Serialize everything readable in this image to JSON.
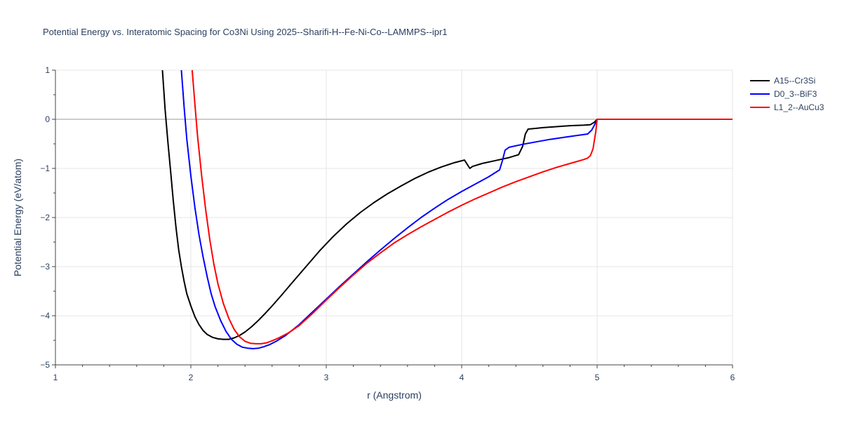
{
  "chart_data": {
    "type": "line",
    "title": "Potential Energy vs. Interatomic Spacing for Co3Ni Using 2025--Sharifi-H--Fe-Ni-Co--LAMMPS--ipr1",
    "xlabel": "r (Angstrom)",
    "ylabel": "Potential Energy (eV/atom)",
    "xlim": [
      1,
      6
    ],
    "ylim": [
      -5,
      1
    ],
    "xticks": [
      "1",
      "2",
      "3",
      "4",
      "5",
      "6"
    ],
    "yticks": [
      "1",
      "0",
      "−1",
      "−2",
      "−3",
      "−4",
      "−5"
    ],
    "grid": true,
    "legend_position": "top-right",
    "series": [
      {
        "name": "A15--Cr3Si",
        "color": "#000000",
        "x": [
          1.79,
          1.81,
          1.83,
          1.85,
          1.87,
          1.89,
          1.91,
          1.93,
          1.95,
          1.97,
          2.0,
          2.03,
          2.06,
          2.09,
          2.12,
          2.16,
          2.2,
          2.24,
          2.28,
          2.32,
          2.36,
          2.4,
          2.45,
          2.5,
          2.55,
          2.6,
          2.67,
          2.75,
          2.85,
          2.95,
          3.05,
          3.15,
          3.25,
          3.35,
          3.45,
          3.55,
          3.65,
          3.75,
          3.85,
          3.95,
          4.02,
          4.06,
          4.08,
          4.15,
          4.25,
          4.35,
          4.42,
          4.45,
          4.47,
          4.49,
          4.6,
          4.7,
          4.8,
          4.9,
          4.95,
          4.98,
          5.0,
          5.1,
          5.5,
          6.0
        ],
        "y": [
          1.0,
          0.2,
          -0.45,
          -1.05,
          -1.65,
          -2.2,
          -2.65,
          -3.0,
          -3.3,
          -3.55,
          -3.8,
          -4.02,
          -4.18,
          -4.3,
          -4.38,
          -4.44,
          -4.47,
          -4.48,
          -4.48,
          -4.45,
          -4.4,
          -4.33,
          -4.22,
          -4.09,
          -3.95,
          -3.8,
          -3.58,
          -3.32,
          -3.0,
          -2.68,
          -2.39,
          -2.13,
          -1.9,
          -1.7,
          -1.52,
          -1.36,
          -1.21,
          -1.08,
          -0.97,
          -0.88,
          -0.83,
          -1.0,
          -0.96,
          -0.9,
          -0.84,
          -0.78,
          -0.72,
          -0.55,
          -0.3,
          -0.2,
          -0.17,
          -0.15,
          -0.13,
          -0.12,
          -0.11,
          -0.06,
          0.0,
          0.0,
          0.0,
          0.0
        ]
      },
      {
        "name": "D0_3--BiF3",
        "color": "#0000ff",
        "x": [
          1.93,
          1.95,
          1.97,
          2.0,
          2.03,
          2.06,
          2.09,
          2.12,
          2.15,
          2.18,
          2.22,
          2.26,
          2.3,
          2.34,
          2.38,
          2.42,
          2.46,
          2.5,
          2.54,
          2.58,
          2.63,
          2.7,
          2.8,
          2.9,
          3.0,
          3.1,
          3.2,
          3.3,
          3.4,
          3.5,
          3.6,
          3.7,
          3.8,
          3.9,
          4.0,
          4.1,
          4.2,
          4.28,
          4.3,
          4.32,
          4.35,
          4.45,
          4.55,
          4.65,
          4.75,
          4.85,
          4.93,
          4.96,
          4.98,
          5.0,
          5.2,
          6.0
        ],
        "y": [
          1.0,
          0.25,
          -0.4,
          -1.15,
          -1.8,
          -2.35,
          -2.8,
          -3.2,
          -3.55,
          -3.82,
          -4.1,
          -4.32,
          -4.48,
          -4.58,
          -4.64,
          -4.66,
          -4.67,
          -4.66,
          -4.63,
          -4.59,
          -4.52,
          -4.4,
          -4.18,
          -3.92,
          -3.66,
          -3.4,
          -3.15,
          -2.9,
          -2.66,
          -2.43,
          -2.21,
          -2.0,
          -1.81,
          -1.63,
          -1.47,
          -1.32,
          -1.17,
          -1.03,
          -0.85,
          -0.63,
          -0.57,
          -0.51,
          -0.46,
          -0.41,
          -0.37,
          -0.33,
          -0.3,
          -0.22,
          -0.12,
          0.0,
          0.0,
          0.0
        ]
      },
      {
        "name": "L1_2--AuCu3",
        "color": "#ff0000",
        "x": [
          2.01,
          2.03,
          2.05,
          2.08,
          2.11,
          2.14,
          2.17,
          2.2,
          2.24,
          2.28,
          2.32,
          2.36,
          2.4,
          2.44,
          2.48,
          2.52,
          2.56,
          2.6,
          2.65,
          2.72,
          2.8,
          2.9,
          3.0,
          3.1,
          3.2,
          3.3,
          3.4,
          3.5,
          3.6,
          3.7,
          3.8,
          3.9,
          4.0,
          4.1,
          4.2,
          4.3,
          4.4,
          4.5,
          4.6,
          4.7,
          4.8,
          4.9,
          4.93,
          4.95,
          4.97,
          4.99,
          5.0,
          5.2,
          6.0
        ],
        "y": [
          1.0,
          0.3,
          -0.35,
          -1.15,
          -1.85,
          -2.45,
          -2.95,
          -3.35,
          -3.75,
          -4.05,
          -4.28,
          -4.43,
          -4.52,
          -4.56,
          -4.57,
          -4.57,
          -4.55,
          -4.51,
          -4.45,
          -4.35,
          -4.2,
          -3.95,
          -3.68,
          -3.42,
          -3.17,
          -2.93,
          -2.72,
          -2.52,
          -2.35,
          -2.19,
          -2.04,
          -1.89,
          -1.75,
          -1.62,
          -1.5,
          -1.38,
          -1.27,
          -1.17,
          -1.07,
          -0.98,
          -0.9,
          -0.82,
          -0.79,
          -0.74,
          -0.6,
          -0.25,
          0.0,
          0.0,
          0.0
        ]
      }
    ]
  }
}
